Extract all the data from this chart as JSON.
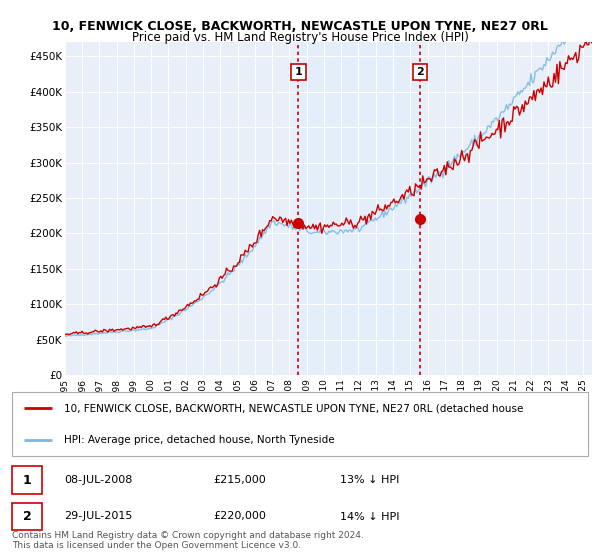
{
  "title": "10, FENWICK CLOSE, BACKWORTH, NEWCASTLE UPON TYNE, NE27 0RL",
  "subtitle": "Price paid vs. HM Land Registry's House Price Index (HPI)",
  "ylabel_ticks": [
    "£0",
    "£50K",
    "£100K",
    "£150K",
    "£200K",
    "£250K",
    "£300K",
    "£350K",
    "£400K",
    "£450K"
  ],
  "ytick_values": [
    0,
    50000,
    100000,
    150000,
    200000,
    250000,
    300000,
    350000,
    400000,
    450000
  ],
  "ylim": [
    0,
    470000
  ],
  "xlim_start": 1995.0,
  "xlim_end": 2025.5,
  "hpi_color": "#7cb9e0",
  "price_color": "#cc0000",
  "sale1_x": 2008.52,
  "sale1_y": 215000,
  "sale2_x": 2015.57,
  "sale2_y": 220000,
  "vline_color": "#cc0000",
  "shade_color": "#ddeeff",
  "bg_color": "#e8eff8",
  "legend_line1": "10, FENWICK CLOSE, BACKWORTH, NEWCASTLE UPON TYNE, NE27 0RL (detached house",
  "legend_line2": "HPI: Average price, detached house, North Tyneside",
  "annotation1_date": "08-JUL-2008",
  "annotation1_price": "£215,000",
  "annotation1_hpi": "13% ↓ HPI",
  "annotation2_date": "29-JUL-2015",
  "annotation2_price": "£220,000",
  "annotation2_hpi": "14% ↓ HPI",
  "footer": "Contains HM Land Registry data © Crown copyright and database right 2024.\nThis data is licensed under the Open Government Licence v3.0.",
  "xtick_years": [
    1995,
    1996,
    1997,
    1998,
    1999,
    2000,
    2001,
    2002,
    2003,
    2004,
    2005,
    2006,
    2007,
    2008,
    2009,
    2010,
    2011,
    2012,
    2013,
    2014,
    2015,
    2016,
    2017,
    2018,
    2019,
    2020,
    2021,
    2022,
    2023,
    2024,
    2025
  ]
}
